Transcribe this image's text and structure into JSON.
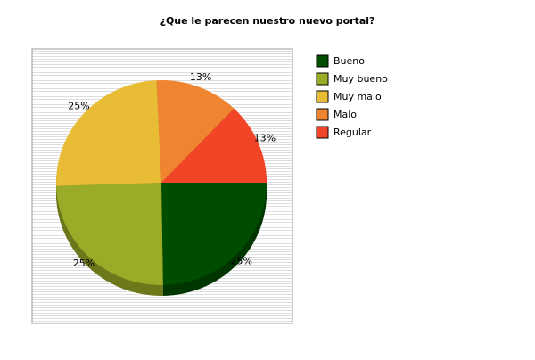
{
  "chart_data": {
    "type": "pie",
    "title": "¿Que le parecen nuestro nuevo portal?",
    "categories": [
      "Bueno",
      "Muy bueno",
      "Muy malo",
      "Malo",
      "Regular"
    ],
    "values": [
      25,
      25,
      25,
      13,
      13
    ],
    "value_labels": [
      "25%",
      "25%",
      "25%",
      "13%",
      "13%"
    ],
    "colors": [
      "#004d00",
      "#9aab27",
      "#e9bc35",
      "#ef8530",
      "#f24527"
    ],
    "legend": "right"
  }
}
